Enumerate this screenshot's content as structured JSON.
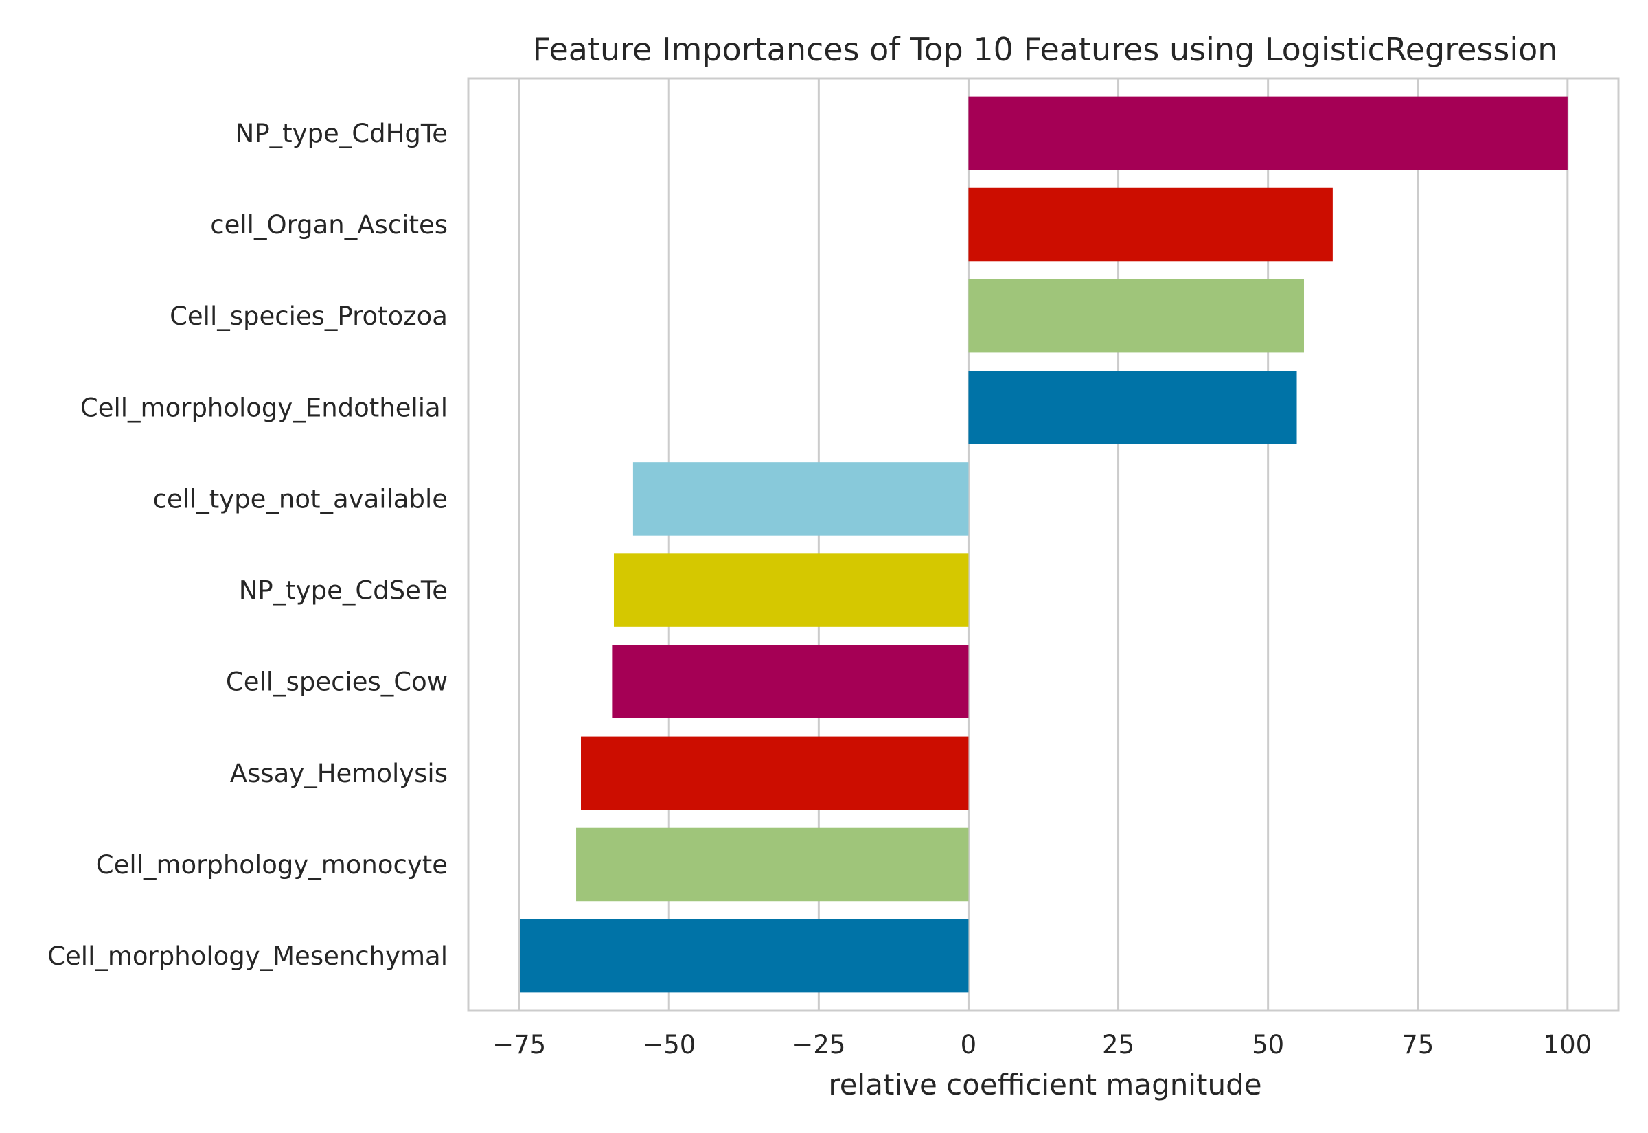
{
  "chart_data": {
    "type": "bar",
    "orientation": "horizontal",
    "title": "Feature Importances of Top 10 Features using LogisticRegression",
    "xlabel": "relative coefficient magnitude",
    "ylabel": "",
    "xlim": [
      -83.5,
      108.5
    ],
    "xticks": [
      -75,
      -50,
      -25,
      0,
      25,
      50,
      75,
      100
    ],
    "xtick_labels": [
      "−75",
      "−50",
      "−25",
      "0",
      "25",
      "50",
      "75",
      "100"
    ],
    "grid": "vertical",
    "categories": [
      "NP_type_CdHgTe",
      "cell_Organ_Ascites",
      "Cell_species_Protozoa",
      "Cell_morphology_Endothelial",
      "cell_type_not_available",
      "NP_type_CdSeTe",
      "Cell_species_Cow",
      "Assay_Hemolysis",
      "Cell_morphology_monocyte",
      "Cell_morphology_Mesenchymal"
    ],
    "values": [
      100,
      60.8,
      56.0,
      54.8,
      -56.0,
      -59.2,
      -59.5,
      -64.7,
      -65.5,
      -74.8
    ],
    "colors": [
      "#a50055",
      "#cc0d00",
      "#9fc57a",
      "#0073a7",
      "#88c9da",
      "#d5c800",
      "#a50055",
      "#cc0d00",
      "#9fc57a",
      "#0073a7"
    ]
  }
}
